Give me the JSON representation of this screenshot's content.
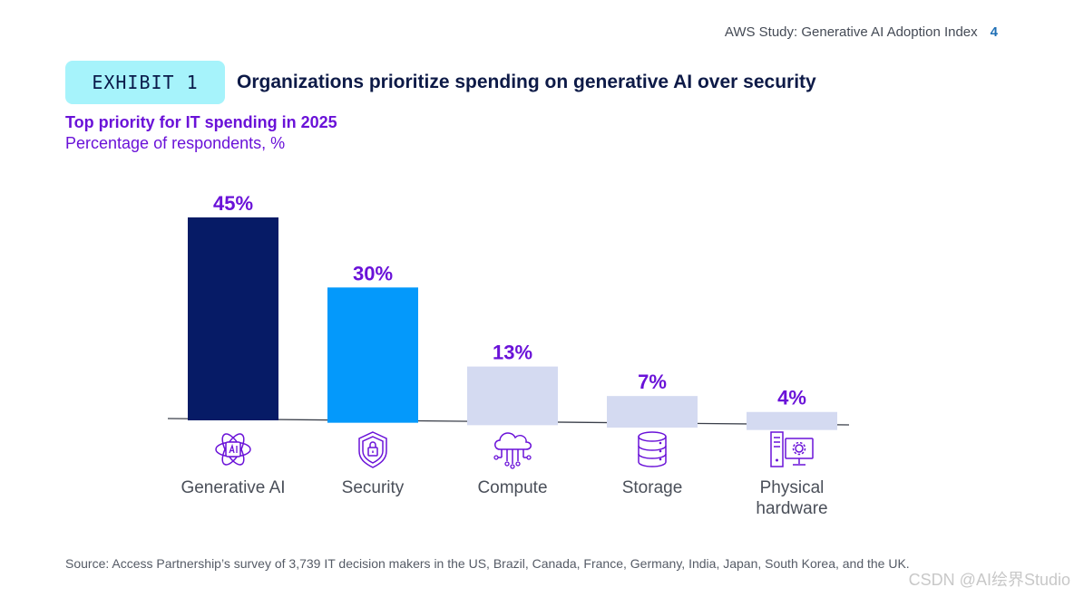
{
  "header": {
    "doc_title": "AWS Study: Generative AI Adoption Index",
    "page_number": "4"
  },
  "exhibit": {
    "badge_label": "EXHIBIT 1",
    "badge_color": "#a6f3fb",
    "title": "Organizations prioritize spending on generative AI over security"
  },
  "chart_data": {
    "type": "bar",
    "title": "Top priority for IT spending in 2025",
    "subtitle": "Percentage of respondents, %",
    "categories": [
      "Generative AI",
      "Security",
      "Compute",
      "Storage",
      "Physical hardware"
    ],
    "category_lines": [
      [
        "Generative AI"
      ],
      [
        "Security"
      ],
      [
        "Compute"
      ],
      [
        "Storage"
      ],
      [
        "Physical",
        "hardware"
      ]
    ],
    "values": [
      45,
      30,
      13,
      7,
      4
    ],
    "value_labels": [
      "45%",
      "30%",
      "13%",
      "7%",
      "4%"
    ],
    "bar_colors": [
      "#061b66",
      "#0499fb",
      "#d4daf1",
      "#d4daf1",
      "#d4daf1"
    ],
    "category_icons": [
      "ai-chip-icon",
      "security-shield-icon",
      "cloud-compute-icon",
      "storage-database-icon",
      "physical-hardware-icon"
    ],
    "ylim": [
      0,
      45
    ],
    "grid": false,
    "label_color": "#6a12d8"
  },
  "source": "Source: Access Partnership’s survey of 3,739 IT decision makers in the US, Brazil, Canada, France, Germany, India, Japan, South Korea, and the UK.",
  "watermark": "CSDN @AI绘界Studio"
}
